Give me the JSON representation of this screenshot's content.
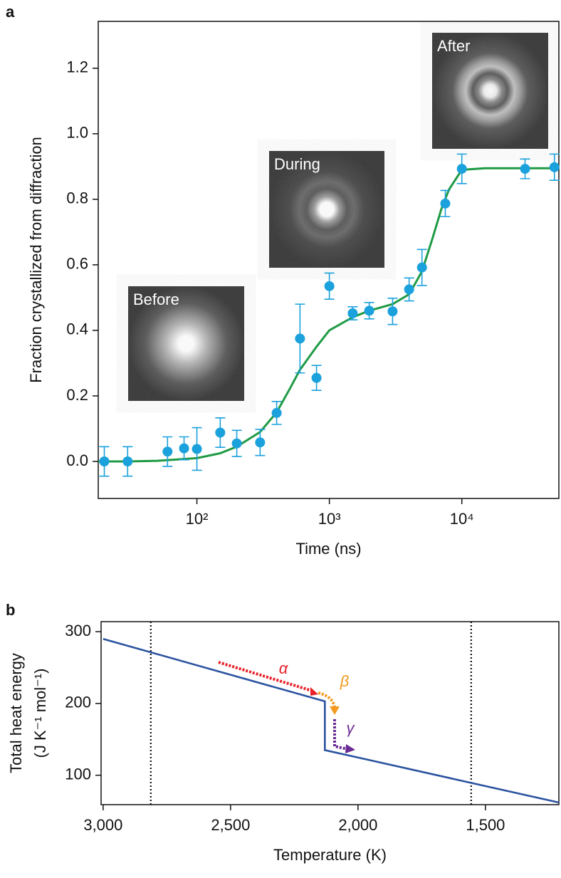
{
  "chart_data": [
    {
      "type": "scatter",
      "panel_label": "a",
      "xlabel": "Time (ns)",
      "ylabel": "Fraction crystallized from diffraction",
      "xscale": "log",
      "xlim": [
        18,
        54000
      ],
      "ylim": [
        -0.113,
        1.343
      ],
      "xticks": [
        {
          "value": 100,
          "label": "10²"
        },
        {
          "value": 1000,
          "label": "10³"
        },
        {
          "value": 10000,
          "label": "10⁴"
        }
      ],
      "yticks": [
        {
          "value": 0,
          "label": "0.0"
        },
        0.2,
        0.4,
        0.6,
        0.8,
        {
          "value": 1,
          "label": "1.0"
        },
        1.2
      ],
      "color": "#1ba1dc",
      "x": [
        20,
        30,
        60,
        80,
        100,
        150,
        200,
        300,
        400,
        600,
        800,
        1000,
        1500,
        2000,
        3000,
        4000,
        5000,
        7500,
        10000,
        30000,
        50000
      ],
      "values": [
        0.0,
        0.0,
        0.03,
        0.04,
        0.038,
        0.088,
        0.055,
        0.058,
        0.148,
        0.375,
        0.255,
        0.535,
        0.452,
        0.46,
        0.458,
        0.525,
        0.592,
        0.787,
        0.893,
        0.893,
        0.898
      ],
      "errors": [
        0.045,
        0.045,
        0.045,
        0.035,
        0.065,
        0.045,
        0.04,
        0.04,
        0.035,
        0.105,
        0.038,
        0.04,
        0.02,
        0.025,
        0.04,
        0.035,
        0.055,
        0.04,
        0.045,
        0.03,
        0.04
      ],
      "fit": {
        "color": "#1f9a45",
        "x": [
          18,
          30,
          50,
          100,
          150,
          200,
          300,
          400,
          500,
          600,
          800,
          1000,
          1500,
          2000,
          3000,
          4000,
          5000,
          6000,
          7000,
          8000,
          10000,
          15000,
          54000
        ],
        "values": [
          0,
          0,
          0.002,
          0.01,
          0.025,
          0.045,
          0.09,
          0.15,
          0.22,
          0.28,
          0.35,
          0.4,
          0.44,
          0.46,
          0.48,
          0.51,
          0.58,
          0.68,
          0.77,
          0.83,
          0.89,
          0.895,
          0.895
        ]
      },
      "insets": [
        "Before",
        "During",
        "After"
      ]
    },
    {
      "type": "line",
      "panel_label": "b",
      "xlabel": "Temperature (K)",
      "ylabel": [
        "Total heat energy",
        "(J K⁻¹ mol⁻¹)"
      ],
      "xlim": [
        3008,
        1212
      ],
      "ylim": [
        59,
        314
      ],
      "xticks": [
        {
          "value": 3000,
          "label": "3,000"
        },
        {
          "value": 2500,
          "label": "2,500"
        },
        {
          "value": 2000,
          "label": "2,000"
        },
        {
          "value": 1500,
          "label": "1,500"
        }
      ],
      "yticks": [
        100,
        200,
        300
      ],
      "color": "#2b53a0",
      "x": [
        3000,
        2130,
        2130,
        1212
      ],
      "values": [
        290,
        203,
        135,
        62
      ],
      "vlines": [
        2813,
        1556
      ],
      "annotations": [
        "α",
        "β",
        "γ"
      ]
    }
  ]
}
